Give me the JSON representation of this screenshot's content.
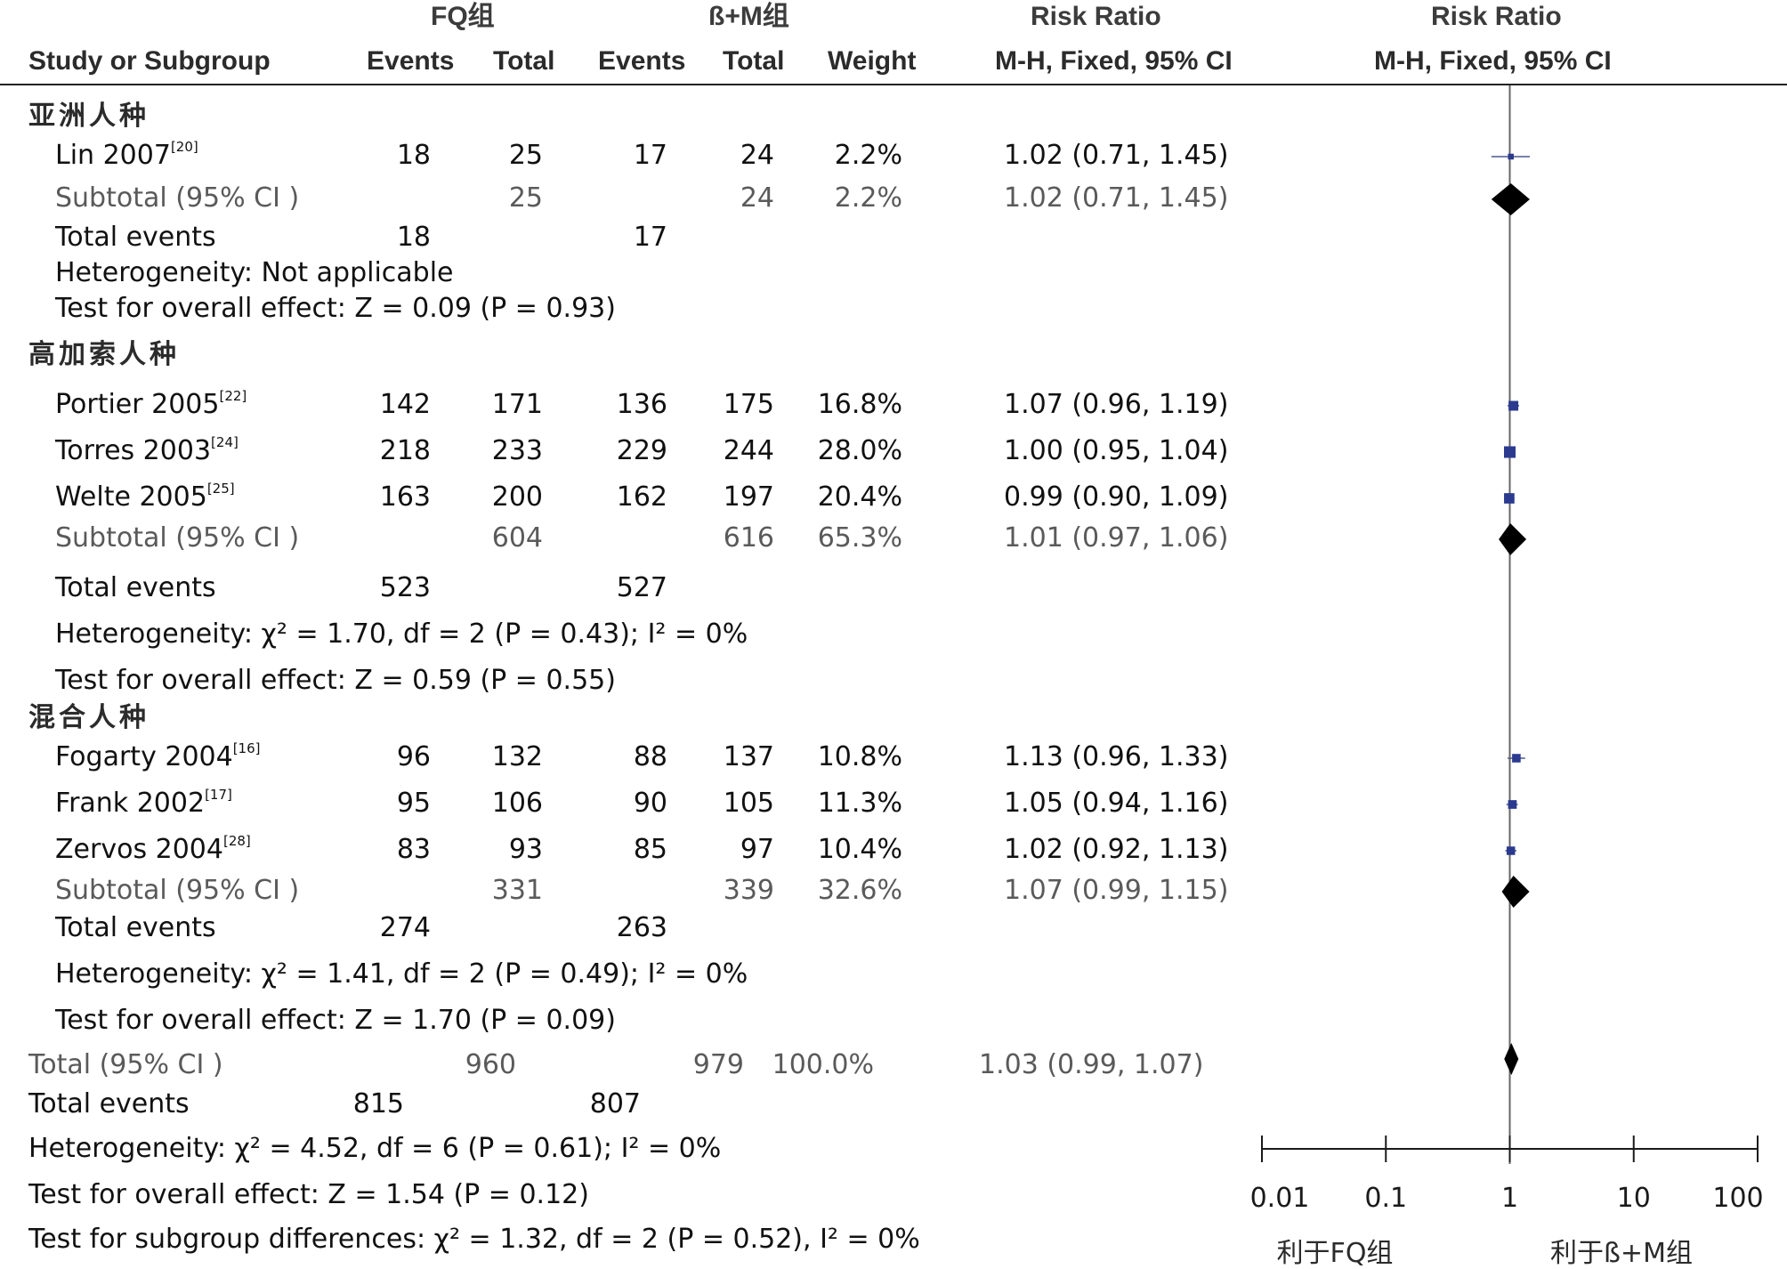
{
  "header": {
    "group1": "FQ组",
    "group2": "ß+M组",
    "risk_ratio": "Risk Ratio",
    "risk_ratio_plot": "Risk Ratio",
    "study": "Study or Subgroup",
    "events1": "Events",
    "total1": "Total",
    "events2": "Events",
    "total2": "Total",
    "weight": "Weight",
    "method": "M-H, Fixed, 95% CI",
    "method_plot": "M-H, Fixed, 95% CI"
  },
  "groups": [
    {
      "name": "亚洲人种",
      "studies": [
        {
          "name": "Lin 2007",
          "ref": "[20]",
          "e1": "18",
          "t1": "25",
          "e2": "17",
          "t2": "24",
          "weight": "2.2%",
          "ci": "1.02 (0.71, 1.45)"
        }
      ],
      "subtotal": {
        "label": "Subtotal (95% CI )",
        "t1": "25",
        "t2": "24",
        "weight": "2.2%",
        "ci": "1.02 (0.71, 1.45)"
      },
      "total_events": {
        "label": "Total events",
        "e1": "18",
        "e2": "17"
      },
      "heterogeneity": "Heterogeneity: Not applicable",
      "overall": "Test for overall effect: Z = 0.09 (P = 0.93)"
    },
    {
      "name": "高加索人种",
      "studies": [
        {
          "name": "Portier 2005",
          "ref": "[22]",
          "e1": "142",
          "t1": "171",
          "e2": "136",
          "t2": "175",
          "weight": "16.8%",
          "ci": "1.07 (0.96, 1.19)"
        },
        {
          "name": "Torres 2003",
          "ref": "[24]",
          "e1": "218",
          "t1": "233",
          "e2": "229",
          "t2": "244",
          "weight": "28.0%",
          "ci": "1.00 (0.95, 1.04)"
        },
        {
          "name": "Welte 2005",
          "ref": "[25]",
          "e1": "163",
          "t1": "200",
          "e2": "162",
          "t2": "197",
          "weight": "20.4%",
          "ci": "0.99 (0.90, 1.09)"
        }
      ],
      "subtotal": {
        "label": "Subtotal (95% CI )",
        "t1": "604",
        "t2": "616",
        "weight": "65.3%",
        "ci": "1.01 (0.97, 1.06)"
      },
      "total_events": {
        "label": "Total events",
        "e1": "523",
        "e2": "527"
      },
      "heterogeneity": "Heterogeneity: χ² = 1.70, df = 2 (P = 0.43); I² = 0%",
      "overall": "Test for overall effect: Z = 0.59 (P = 0.55)"
    },
    {
      "name": "混合人种",
      "studies": [
        {
          "name": "Fogarty 2004",
          "ref": "[16]",
          "e1": "96",
          "t1": "132",
          "e2": "88",
          "t2": "137",
          "weight": "10.8%",
          "ci": "1.13 (0.96, 1.33)"
        },
        {
          "name": "Frank 2002",
          "ref": "[17]",
          "e1": "95",
          "t1": "106",
          "e2": "90",
          "t2": "105",
          "weight": "11.3%",
          "ci": "1.05 (0.94, 1.16)"
        },
        {
          "name": "Zervos 2004",
          "ref": "[28]",
          "e1": "83",
          "t1": "93",
          "e2": "85",
          "t2": "97",
          "weight": "10.4%",
          "ci": "1.02 (0.92, 1.13)"
        }
      ],
      "subtotal": {
        "label": "Subtotal (95% CI )",
        "t1": "331",
        "t2": "339",
        "weight": "32.6%",
        "ci": "1.07 (0.99, 1.15)"
      },
      "total_events": {
        "label": "Total events",
        "e1": "274",
        "e2": "263"
      },
      "heterogeneity": "Heterogeneity: χ² = 1.41, df = 2 (P = 0.49); I² = 0%",
      "overall": "Test for overall effect: Z = 1.70 (P = 0.09)"
    }
  ],
  "total": {
    "label": "Total (95% CI )",
    "t1": "960",
    "t2": "979",
    "weight": "100.0%",
    "ci": "1.03 (0.99, 1.07)"
  },
  "total_events": {
    "label": "Total events",
    "e1": "815",
    "e2": "807"
  },
  "heterogeneity": "Heterogeneity: χ² = 4.52, df = 6 (P = 0.61); I² = 0%",
  "overall": "Test for overall effect: Z = 1.54 (P = 0.12)",
  "subgroup_diff": "Test for subgroup differences: χ² = 1.32, df = 2 (P = 0.52), I² = 0%",
  "axis": {
    "ticks": [
      "0.01",
      "0.1",
      "1",
      "10",
      "100"
    ],
    "favours_left": "利于FQ组",
    "favours_right": "利于ß+M组"
  },
  "colors": {
    "study_marker": "#2b3a8f",
    "diamond": "#000000",
    "ci_line": "#4a5a8a",
    "reference_line": "#666666"
  },
  "chart_data": {
    "type": "forest",
    "scale": "log",
    "xlim": [
      0.01,
      100
    ],
    "reference": 1,
    "ticks": [
      0.01,
      0.1,
      1,
      10,
      100
    ],
    "studies": [
      {
        "name": "Lin 2007",
        "rr": 1.02,
        "lo": 0.71,
        "hi": 1.45,
        "weight": 2.2
      },
      {
        "name": "Portier 2005",
        "rr": 1.07,
        "lo": 0.96,
        "hi": 1.19,
        "weight": 16.8
      },
      {
        "name": "Torres 2003",
        "rr": 1.0,
        "lo": 0.95,
        "hi": 1.04,
        "weight": 28.0
      },
      {
        "name": "Welte 2005",
        "rr": 0.99,
        "lo": 0.9,
        "hi": 1.09,
        "weight": 20.4
      },
      {
        "name": "Fogarty 2004",
        "rr": 1.13,
        "lo": 0.96,
        "hi": 1.33,
        "weight": 10.8
      },
      {
        "name": "Frank 2002",
        "rr": 1.05,
        "lo": 0.94,
        "hi": 1.16,
        "weight": 11.3
      },
      {
        "name": "Zervos 2004",
        "rr": 1.02,
        "lo": 0.92,
        "hi": 1.13,
        "weight": 10.4
      }
    ],
    "subtotals": [
      {
        "name": "亚洲人种",
        "rr": 1.02,
        "lo": 0.71,
        "hi": 1.45
      },
      {
        "name": "高加索人种",
        "rr": 1.01,
        "lo": 0.97,
        "hi": 1.06
      },
      {
        "name": "混合人种",
        "rr": 1.07,
        "lo": 0.99,
        "hi": 1.15
      }
    ],
    "overall": {
      "rr": 1.03,
      "lo": 0.99,
      "hi": 1.07
    }
  }
}
